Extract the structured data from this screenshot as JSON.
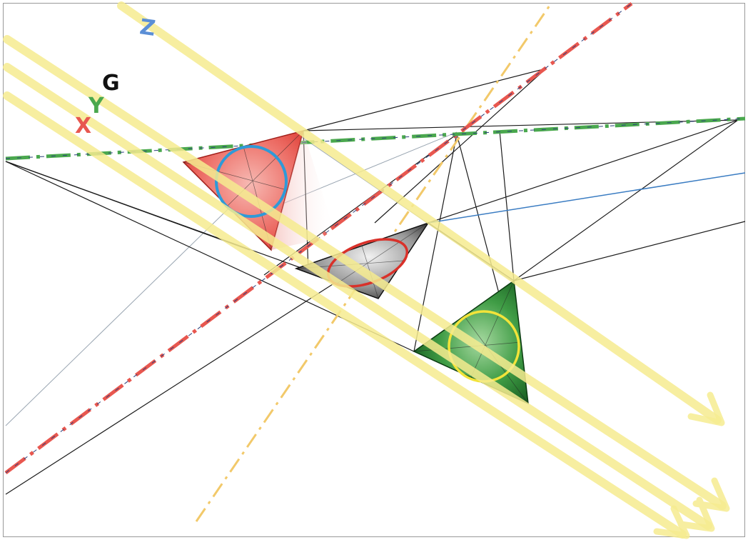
{
  "labels": {
    "z": "Z",
    "g": "G",
    "y": "Y",
    "x": "X"
  },
  "colors": {
    "x_axis": "#e8574f",
    "y_axis": "#4aa84e",
    "z_axis": "#5b8fd6",
    "g_label": "#111111",
    "light_ray": "#f6ec90",
    "yellow_axis": "#f2c96a",
    "red_triangle": "#e2453f",
    "black_triangle": "#333333",
    "green_triangle": "#1f7a2a",
    "blue_circle": "#2e9ad8",
    "red_ellipse": "#d9312a",
    "yellow_circle": "#f2e33a",
    "construction_line": "#1b1b1b",
    "blue_line": "#3a7cc2"
  },
  "icons": [
    "ray-arrowhead",
    "triangle",
    "circle",
    "ellipse"
  ]
}
